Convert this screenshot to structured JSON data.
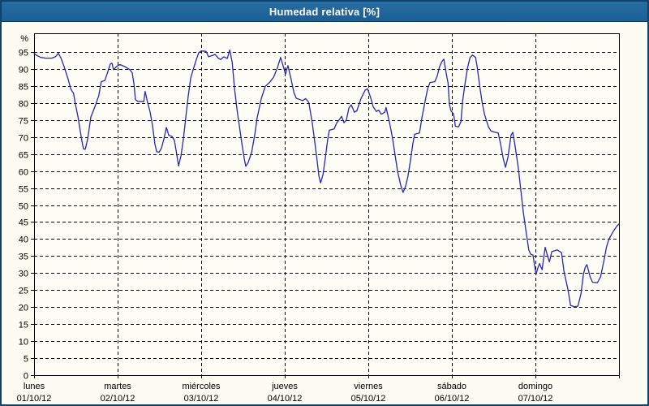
{
  "window": {
    "title": "Humedad relativa [%]"
  },
  "colors": {
    "titlebar_bg": "#1d6395",
    "titlebar_text": "#ffffff",
    "frame_border": "#10416b",
    "page_bg": "#fcfcf2",
    "plot_bg": "#fdfdf6",
    "grid": "#000000",
    "axis_text": "#000000",
    "line": "#2727b3"
  },
  "chart_data": {
    "type": "line",
    "title": "Humedad relativa [%]",
    "ylabel": "%",
    "unit_label": "%",
    "grid": "dashed",
    "legend": "none",
    "ylim": [
      0,
      100.5
    ],
    "xlim": [
      0,
      168
    ],
    "y_ticks": [
      0,
      5,
      10,
      15,
      20,
      25,
      30,
      35,
      40,
      45,
      50,
      55,
      60,
      65,
      70,
      75,
      80,
      85,
      90,
      95
    ],
    "x_tick_interval_hours": 24,
    "x_day_ticks": [
      {
        "hour": 0,
        "day": "lunes",
        "date": "01/10/12"
      },
      {
        "hour": 24,
        "day": "martes",
        "date": "02/10/12"
      },
      {
        "hour": 48,
        "day": "miércoles",
        "date": "03/10/12"
      },
      {
        "hour": 72,
        "day": "jueves",
        "date": "04/10/12"
      },
      {
        "hour": 96,
        "day": "viernes",
        "date": "05/10/12"
      },
      {
        "hour": 120,
        "day": "sábado",
        "date": "06/10/12"
      },
      {
        "hour": 144,
        "day": "domingo",
        "date": "07/10/12"
      }
    ],
    "series": [
      {
        "name": "Humedad relativa",
        "color": "#2727b3",
        "points": [
          [
            0,
            94.5
          ],
          [
            0.9,
            93.9
          ],
          [
            1.9,
            93.4
          ],
          [
            3.3,
            93.2
          ],
          [
            5.1,
            93.2
          ],
          [
            6.1,
            93.6
          ],
          [
            7,
            94.6
          ],
          [
            7.7,
            93.3
          ],
          [
            8.6,
            90.8
          ],
          [
            9.8,
            86.9
          ],
          [
            10.5,
            84.3
          ],
          [
            11,
            83.3
          ],
          [
            11.3,
            83
          ],
          [
            11.9,
            79.5
          ],
          [
            12.6,
            76
          ],
          [
            13.3,
            71.5
          ],
          [
            13.8,
            68.5
          ],
          [
            14.2,
            66.5
          ],
          [
            14.7,
            66.4
          ],
          [
            15.4,
            69.5
          ],
          [
            16.3,
            75.9
          ],
          [
            17.5,
            79
          ],
          [
            18.6,
            82.2
          ],
          [
            19.3,
            86.3
          ],
          [
            20.3,
            86.6
          ],
          [
            21,
            88.6
          ],
          [
            21.9,
            91.5
          ],
          [
            22.4,
            91.7
          ],
          [
            22.8,
            89.8
          ],
          [
            23.8,
            90.8
          ],
          [
            24.7,
            91.3
          ],
          [
            26.1,
            90.7
          ],
          [
            27.5,
            89.8
          ],
          [
            28.2,
            88.9
          ],
          [
            28.7,
            85.5
          ],
          [
            29.1,
            81
          ],
          [
            29.8,
            80.5
          ],
          [
            31.5,
            80.4
          ],
          [
            31.9,
            83.4
          ],
          [
            32.6,
            80.2
          ],
          [
            33.3,
            77.5
          ],
          [
            34,
            73.5
          ],
          [
            34.7,
            68
          ],
          [
            35.2,
            65.7
          ],
          [
            35.9,
            65.5
          ],
          [
            36.6,
            66.8
          ],
          [
            37.3,
            69.5
          ],
          [
            38,
            72.8
          ],
          [
            38.7,
            70.5
          ],
          [
            39.6,
            70.2
          ],
          [
            40.3,
            69
          ],
          [
            40.8,
            66
          ],
          [
            41.5,
            61.5
          ],
          [
            42.2,
            64.5
          ],
          [
            42.9,
            69.5
          ],
          [
            43.6,
            76
          ],
          [
            44.3,
            82.2
          ],
          [
            45,
            87.4
          ],
          [
            45.7,
            89.8
          ],
          [
            46.6,
            92.8
          ],
          [
            47.3,
            94.8
          ],
          [
            48,
            95.3
          ],
          [
            49.4,
            95.2
          ],
          [
            50.1,
            93.6
          ],
          [
            51,
            93.9
          ],
          [
            52,
            94.3
          ],
          [
            52.9,
            93.2
          ],
          [
            53.6,
            92.8
          ],
          [
            54.5,
            93.6
          ],
          [
            55.5,
            93.1
          ],
          [
            56.2,
            95.6
          ],
          [
            56.9,
            92
          ],
          [
            57.6,
            84
          ],
          [
            58.3,
            78
          ],
          [
            59,
            73
          ],
          [
            59.7,
            68
          ],
          [
            60.4,
            63.5
          ],
          [
            60.8,
            61.4
          ],
          [
            61.5,
            62.5
          ],
          [
            62.5,
            65.5
          ],
          [
            63.4,
            70.8
          ],
          [
            64.1,
            75.8
          ],
          [
            65.3,
            81.4
          ],
          [
            66.4,
            84.9
          ],
          [
            67.6,
            86
          ],
          [
            68.8,
            87.6
          ],
          [
            69.9,
            90.4
          ],
          [
            70.8,
            93.4
          ],
          [
            71.5,
            91
          ],
          [
            72.2,
            88.5
          ],
          [
            72.9,
            91
          ],
          [
            73.9,
            86.6
          ],
          [
            74.6,
            83.1
          ],
          [
            75.3,
            81.4
          ],
          [
            76.4,
            81
          ],
          [
            77.1,
            80.7
          ],
          [
            78,
            81.3
          ],
          [
            78.9,
            80.2
          ],
          [
            79.9,
            74.2
          ],
          [
            80.6,
            68.7
          ],
          [
            81.3,
            63.1
          ],
          [
            81.8,
            58.5
          ],
          [
            82.3,
            56.5
          ],
          [
            83,
            59
          ],
          [
            83.6,
            63.5
          ],
          [
            84.3,
            69
          ],
          [
            84.8,
            72
          ],
          [
            86.2,
            72.4
          ],
          [
            86.9,
            74.1
          ],
          [
            87.8,
            75.3
          ],
          [
            88.3,
            76.1
          ],
          [
            89,
            74.2
          ],
          [
            89.7,
            75
          ],
          [
            90.4,
            78.5
          ],
          [
            91.1,
            79.5
          ],
          [
            92,
            77.3
          ],
          [
            92.7,
            77.7
          ],
          [
            93.9,
            81.3
          ],
          [
            95.1,
            83.8
          ],
          [
            95.8,
            84.2
          ],
          [
            96.7,
            81.5
          ],
          [
            97.4,
            78.9
          ],
          [
            98.3,
            77.5
          ],
          [
            99,
            77.9
          ],
          [
            99.7,
            76.7
          ],
          [
            100.7,
            77.3
          ],
          [
            101.1,
            78.7
          ],
          [
            102.1,
            74.2
          ],
          [
            103,
            69.5
          ],
          [
            103.7,
            64.7
          ],
          [
            104.4,
            59.9
          ],
          [
            105.3,
            55.9
          ],
          [
            106,
            53.7
          ],
          [
            106.7,
            55.5
          ],
          [
            107.4,
            58.5
          ],
          [
            108.1,
            63
          ],
          [
            108.8,
            68
          ],
          [
            109.3,
            70.8
          ],
          [
            110.7,
            71.2
          ],
          [
            111.4,
            75.7
          ],
          [
            112.3,
            80.5
          ],
          [
            113,
            84.1
          ],
          [
            113.7,
            86
          ],
          [
            115.1,
            86.3
          ],
          [
            115.8,
            88
          ],
          [
            116.5,
            90.8
          ],
          [
            117.2,
            92.3
          ],
          [
            117.7,
            92.9
          ],
          [
            118.4,
            88.6
          ],
          [
            118.9,
            85.9
          ],
          [
            119.3,
            79.5
          ],
          [
            119.8,
            77.6
          ],
          [
            120.5,
            76.8
          ],
          [
            121,
            73.2
          ],
          [
            121.9,
            73
          ],
          [
            122.6,
            74.5
          ],
          [
            123.1,
            80.7
          ],
          [
            123.8,
            85.8
          ],
          [
            124.5,
            90.3
          ],
          [
            125.2,
            93.3
          ],
          [
            125.9,
            94.1
          ],
          [
            126.8,
            93.4
          ],
          [
            127.3,
            90.5
          ],
          [
            128,
            85
          ],
          [
            128.7,
            80.2
          ],
          [
            129.4,
            76.6
          ],
          [
            130.5,
            73
          ],
          [
            131.2,
            71.8
          ],
          [
            132.4,
            71.4
          ],
          [
            133.3,
            71.2
          ],
          [
            134,
            67.9
          ],
          [
            134.7,
            63.9
          ],
          [
            135.4,
            61.1
          ],
          [
            136.1,
            64
          ],
          [
            137,
            70.6
          ],
          [
            137.5,
            71.4
          ],
          [
            138.2,
            67.1
          ],
          [
            139.1,
            60.7
          ],
          [
            139.8,
            54.4
          ],
          [
            140.5,
            48
          ],
          [
            141.4,
            41.6
          ],
          [
            142.1,
            36.8
          ],
          [
            142.6,
            35.6
          ],
          [
            143.3,
            35.3
          ],
          [
            143.8,
            32
          ],
          [
            144.2,
            29.7
          ],
          [
            144.7,
            31.5
          ],
          [
            145.2,
            32.8
          ],
          [
            145.9,
            31
          ],
          [
            146.8,
            37.6
          ],
          [
            147.5,
            35
          ],
          [
            148,
            33.3
          ],
          [
            148.7,
            36.3
          ],
          [
            150.3,
            36.8
          ],
          [
            151.5,
            36
          ],
          [
            152.2,
            30.5
          ],
          [
            153.4,
            24.9
          ],
          [
            154.1,
            20.5
          ],
          [
            155.2,
            20.1
          ],
          [
            156.2,
            20.3
          ],
          [
            157.1,
            24
          ],
          [
            157.8,
            29.7
          ],
          [
            158.3,
            31.7
          ],
          [
            158.8,
            32.5
          ],
          [
            159.7,
            28.9
          ],
          [
            160.4,
            27.3
          ],
          [
            161.8,
            27.2
          ],
          [
            162.7,
            28.9
          ],
          [
            163.7,
            33.7
          ],
          [
            164.4,
            37.7
          ],
          [
            165.1,
            40
          ],
          [
            166,
            41.6
          ],
          [
            166.7,
            42.8
          ],
          [
            167.4,
            43.8
          ],
          [
            168,
            44.4
          ]
        ]
      }
    ]
  }
}
